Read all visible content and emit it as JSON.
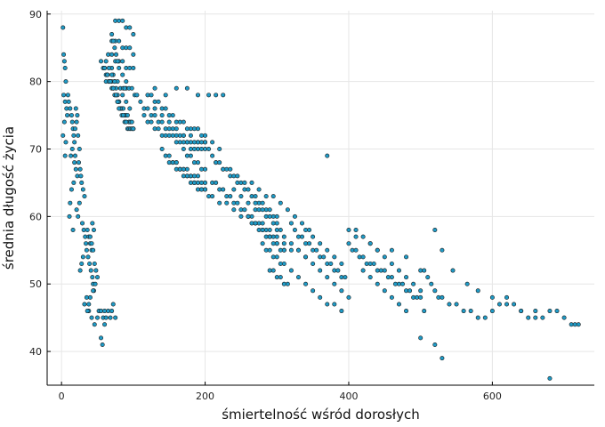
{
  "chart_data": {
    "type": "scatter",
    "title": "",
    "xlabel": "śmiertelność wśród dorosłych",
    "ylabel": "średnia długość życia",
    "xlim": [
      -20,
      742
    ],
    "ylim": [
      35,
      90.5
    ],
    "xticks": [
      0,
      200,
      400,
      600
    ],
    "yticks": [
      40,
      50,
      60,
      70,
      80,
      90
    ],
    "grid": true,
    "legend": "none",
    "marker_color": "#1f9bc7",
    "marker_edge": "#1a1a1a",
    "series": [
      {
        "x": [
          2,
          3,
          4,
          5,
          6,
          3,
          5,
          7,
          8,
          4,
          2,
          6,
          5,
          9,
          10,
          12,
          14,
          15,
          16,
          17,
          18,
          20,
          22,
          21,
          19,
          23,
          25,
          15,
          13,
          18,
          20,
          22,
          17,
          14,
          12,
          11,
          16,
          19,
          24,
          26,
          27,
          28,
          30,
          32,
          25,
          21,
          23,
          29,
          31,
          33,
          34,
          35,
          30,
          28,
          26,
          36,
          38,
          40,
          42,
          37,
          39,
          41,
          43,
          44,
          45,
          35,
          32,
          38,
          42,
          46,
          47,
          44,
          40,
          38,
          36,
          48,
          50,
          46,
          44,
          42,
          40,
          45,
          43,
          50,
          52,
          55,
          58,
          60,
          62,
          65,
          68,
          70,
          72,
          75,
          60,
          55,
          57
        ],
        "y": [
          88,
          84,
          83,
          82,
          80,
          78,
          77,
          76,
          75,
          74,
          72,
          71,
          69,
          78,
          77,
          76,
          75,
          74,
          73,
          72,
          71,
          76,
          75,
          74,
          73,
          72,
          70,
          70,
          69,
          68,
          67,
          66,
          65,
          64,
          62,
          60,
          58,
          69,
          68,
          67,
          66,
          65,
          64,
          63,
          62,
          61,
          60,
          59,
          58,
          57,
          56,
          55,
          54,
          53,
          52,
          58,
          57,
          56,
          55,
          54,
          53,
          52,
          51,
          50,
          49,
          48,
          47,
          46,
          45,
          44,
          50,
          49,
          48,
          47,
          46,
          52,
          51,
          53,
          55,
          56,
          57,
          58,
          59,
          45,
          46,
          46,
          45,
          46,
          45,
          46,
          45,
          46,
          47,
          45,
          44,
          42,
          41
        ]
      },
      {
        "x": [
          55,
          58,
          60,
          62,
          64,
          66,
          68,
          70,
          72,
          74,
          76,
          78,
          80,
          82,
          84,
          86,
          88,
          90,
          92,
          94,
          96,
          98,
          100,
          70,
          72,
          74,
          76,
          78,
          80,
          82,
          84,
          86,
          88,
          90,
          92,
          94,
          96,
          98,
          100,
          75,
          80,
          85,
          90,
          95,
          100,
          70,
          75,
          80,
          85,
          90,
          95,
          100,
          65,
          70,
          75,
          80,
          85,
          90,
          95,
          100,
          62,
          66,
          70,
          74,
          78,
          82,
          86,
          90,
          94,
          98,
          102,
          105,
          70,
          72,
          74,
          76,
          78,
          80,
          85,
          90,
          60,
          62,
          64,
          66,
          68,
          70,
          72,
          74,
          76,
          78,
          80,
          85,
          88,
          90,
          95
        ],
        "y": [
          83,
          82,
          82,
          81,
          81,
          80,
          80,
          79,
          79,
          78,
          78,
          77,
          77,
          76,
          76,
          76,
          75,
          75,
          75,
          74,
          74,
          74,
          73,
          82,
          81,
          80,
          79,
          78,
          77,
          76,
          75,
          75,
          74,
          74,
          73,
          73,
          73,
          73,
          73,
          89,
          89,
          89,
          88,
          88,
          87,
          86,
          86,
          86,
          85,
          85,
          85,
          84,
          84,
          84,
          83,
          83,
          83,
          82,
          82,
          82,
          80,
          80,
          80,
          80,
          80,
          79,
          79,
          79,
          79,
          79,
          78,
          78,
          87,
          86,
          85,
          84,
          83,
          82,
          81,
          80,
          82,
          83,
          81,
          82,
          80,
          81,
          79,
          80,
          78,
          77,
          76,
          78,
          79,
          77,
          76
        ]
      },
      {
        "x": [
          110,
          115,
          120,
          125,
          130,
          135,
          140,
          145,
          150,
          155,
          160,
          165,
          170,
          175,
          180,
          185,
          190,
          195,
          200,
          115,
          120,
          125,
          130,
          135,
          140,
          145,
          150,
          155,
          160,
          165,
          170,
          175,
          180,
          185,
          190,
          195,
          200,
          120,
          125,
          130,
          135,
          140,
          145,
          150,
          155,
          160,
          165,
          170,
          175,
          180,
          185,
          190,
          195,
          200,
          130,
          140,
          150,
          160,
          170,
          180,
          190,
          200,
          210,
          220,
          215,
          225,
          130,
          145,
          160,
          175,
          190,
          205
        ],
        "y": [
          77,
          76,
          76,
          75,
          75,
          74,
          74,
          73,
          73,
          73,
          72,
          72,
          72,
          71,
          71,
          71,
          71,
          71,
          71,
          75,
          74,
          74,
          73,
          73,
          72,
          72,
          72,
          72,
          71,
          71,
          71,
          71,
          70,
          70,
          70,
          70,
          70,
          78,
          78,
          77,
          77,
          76,
          76,
          75,
          75,
          74,
          74,
          74,
          73,
          73,
          73,
          73,
          72,
          72,
          76,
          75,
          74,
          73,
          72,
          72,
          71,
          71,
          71,
          70,
          78,
          78,
          79,
          78,
          79,
          79,
          78,
          78
        ]
      },
      {
        "x": [
          140,
          145,
          150,
          155,
          160,
          165,
          170,
          175,
          180,
          185,
          190,
          195,
          200,
          150,
          155,
          160,
          165,
          170,
          175,
          180,
          185,
          190,
          195,
          200,
          160,
          165,
          170,
          175,
          180,
          185,
          190,
          195,
          200,
          205,
          210,
          170,
          175,
          180,
          185,
          190,
          195,
          200
        ],
        "y": [
          70,
          69,
          68,
          68,
          67,
          67,
          66,
          66,
          65,
          65,
          64,
          64,
          64,
          69,
          68,
          68,
          67,
          67,
          67,
          66,
          66,
          66,
          65,
          65,
          68,
          67,
          67,
          66,
          66,
          65,
          65,
          64,
          64,
          63,
          63,
          70,
          69,
          69,
          68,
          68,
          67,
          67
        ]
      },
      {
        "x": [
          205,
          210,
          215,
          220,
          225,
          230,
          235,
          240,
          245,
          250,
          255,
          260,
          265,
          270,
          275,
          280,
          285,
          290,
          295,
          300,
          210,
          215,
          220,
          225,
          230,
          235,
          240,
          245,
          250,
          255,
          260,
          265,
          270,
          275,
          280,
          285,
          290,
          295,
          215,
          225,
          235,
          245,
          255,
          265,
          275,
          285,
          295,
          305,
          315,
          325,
          335,
          345,
          220,
          230,
          240,
          250,
          260,
          270,
          280,
          290,
          300,
          310,
          320,
          330,
          340,
          370,
          240,
          250,
          260,
          270,
          280,
          290,
          300,
          310
        ],
        "y": [
          70,
          69,
          68,
          68,
          67,
          67,
          66,
          66,
          65,
          65,
          64,
          64,
          63,
          63,
          62,
          62,
          61,
          61,
          60,
          60,
          65,
          65,
          64,
          64,
          63,
          63,
          62,
          62,
          61,
          61,
          60,
          60,
          59,
          59,
          58,
          58,
          57,
          57,
          68,
          67,
          67,
          66,
          65,
          65,
          64,
          63,
          63,
          62,
          61,
          60,
          59,
          58,
          62,
          62,
          61,
          60,
          60,
          59,
          58,
          57,
          57,
          56,
          55,
          55,
          54,
          69,
          64,
          63,
          62,
          61,
          59,
          58,
          56,
          55
        ]
      },
      {
        "x": [
          260,
          265,
          270,
          275,
          280,
          285,
          290,
          295,
          300,
          305,
          310,
          270,
          275,
          280,
          285,
          290,
          295,
          300,
          305,
          280,
          285,
          290,
          295,
          300,
          305,
          310,
          290,
          295,
          300,
          305,
          310,
          315,
          320,
          325,
          330,
          335,
          340,
          345,
          350,
          355,
          360,
          365,
          370,
          375,
          380,
          385,
          390,
          395,
          300,
          310,
          320,
          330,
          340,
          350,
          360,
          370,
          380,
          390,
          400,
          320,
          330,
          340,
          350,
          360,
          370,
          380,
          390,
          340,
          350,
          360,
          370,
          380,
          390
        ],
        "y": [
          60,
          59,
          59,
          58,
          58,
          57,
          57,
          56,
          56,
          55,
          55,
          62,
          61,
          61,
          60,
          60,
          59,
          59,
          58,
          56,
          55,
          55,
          54,
          54,
          53,
          53,
          52,
          52,
          51,
          51,
          50,
          50,
          59,
          58,
          57,
          57,
          56,
          56,
          55,
          55,
          54,
          54,
          53,
          53,
          52,
          52,
          51,
          51,
          58,
          57,
          56,
          55,
          54,
          53,
          52,
          51,
          50,
          49,
          48,
          52,
          51,
          50,
          49,
          48,
          47,
          47,
          46,
          58,
          57,
          56,
          55,
          54,
          53
        ]
      },
      {
        "x": [
          400,
          405,
          410,
          415,
          420,
          425,
          430,
          435,
          440,
          445,
          450,
          455,
          460,
          465,
          470,
          475,
          480,
          485,
          490,
          495,
          500,
          410,
          420,
          430,
          440,
          450,
          460,
          470,
          480,
          490,
          500,
          420,
          430,
          440,
          450,
          460,
          470,
          480,
          500,
          505,
          510,
          515,
          520,
          525,
          530,
          540,
          550,
          560,
          570,
          580,
          590,
          600,
          610,
          620,
          630,
          640,
          650,
          660,
          670,
          680,
          690,
          700,
          710,
          715,
          720,
          400,
          410,
          430,
          440,
          460,
          480,
          520,
          530,
          545,
          565,
          580,
          600,
          620,
          640,
          660,
          680,
          500,
          505,
          520,
          530
        ],
        "y": [
          56,
          55,
          55,
          54,
          54,
          53,
          53,
          53,
          52,
          52,
          52,
          51,
          51,
          50,
          50,
          50,
          49,
          49,
          48,
          48,
          48,
          58,
          57,
          56,
          55,
          54,
          53,
          52,
          51,
          50,
          49,
          52,
          51,
          50,
          49,
          48,
          47,
          46,
          52,
          52,
          51,
          50,
          49,
          48,
          48,
          47,
          47,
          46,
          46,
          45,
          45,
          46,
          47,
          48,
          47,
          46,
          45,
          46,
          45,
          46,
          46,
          45,
          44,
          44,
          44,
          58,
          57,
          56,
          55,
          55,
          54,
          58,
          55,
          52,
          50,
          49,
          48,
          47,
          46,
          45,
          36,
          42,
          46,
          41,
          39
        ]
      }
    ]
  }
}
